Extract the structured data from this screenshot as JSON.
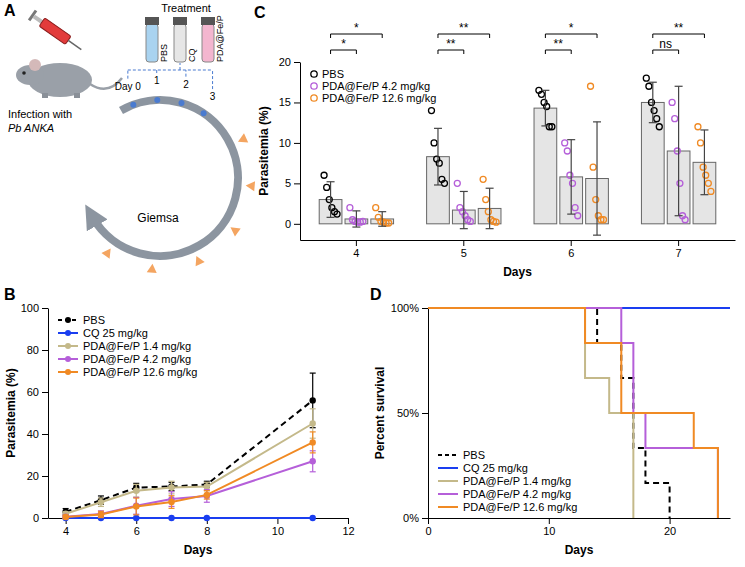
{
  "diagram": {
    "panel": "A",
    "infection": "Infection with",
    "strain": "Pb ANKA",
    "days": [
      "Day 0",
      "1",
      "2",
      "3"
    ],
    "treatment_title": "Treatment",
    "treatments": [
      "PBS",
      "CQ",
      "PDA@Fe/P"
    ],
    "readout": "Giemsa"
  },
  "chart_data": [
    {
      "panel": "B",
      "type": "line",
      "xlabel": "Days",
      "ylabel": "Parasitemia (%)",
      "x": [
        4,
        5,
        6,
        7,
        8,
        11
      ],
      "xlim": [
        3.5,
        12
      ],
      "xticks": [
        4,
        6,
        8,
        10,
        12
      ],
      "ylim": [
        0,
        100
      ],
      "yticks": [
        0,
        20,
        40,
        60,
        80,
        100
      ],
      "legend": "upper left",
      "series": [
        {
          "name": "PBS",
          "color": "#000000",
          "line_style": "dashed",
          "marker": "circle",
          "values": [
            3,
            8.5,
            14.5,
            15,
            16,
            56
          ],
          "errors": [
            1.5,
            2,
            2,
            2,
            1.5,
            13
          ]
        },
        {
          "name": "CQ 25 mg/kg",
          "color": "#1a3ef0",
          "line_style": "solid",
          "marker": "circle",
          "values": [
            0,
            0,
            0,
            0,
            0,
            0
          ]
        },
        {
          "name": "PDA@Fe/P 1.4 mg/kg",
          "color": "#c4b98a",
          "line_style": "solid",
          "marker": "circle",
          "values": [
            2,
            7.5,
            13,
            14.5,
            15,
            45
          ],
          "errors": [
            1,
            2,
            3,
            3,
            2,
            7
          ]
        },
        {
          "name": "PDA@Fe/P 4.2 mg/kg",
          "color": "#b55fd9",
          "line_style": "solid",
          "marker": "circle",
          "values": [
            0.6,
            1.9,
            5.8,
            9,
            10.5,
            27
          ],
          "errors": [
            0.8,
            1.5,
            4,
            3.5,
            3,
            5
          ]
        },
        {
          "name": "PDA@Fe/P 12.6 mg/kg",
          "color": "#f08a24",
          "line_style": "solid",
          "marker": "circle",
          "values": [
            0.5,
            1.7,
            5.5,
            7.6,
            11,
            36
          ],
          "errors": [
            0.8,
            1.5,
            4,
            3,
            2,
            5
          ]
        }
      ]
    },
    {
      "panel": "C",
      "type": "bar",
      "xlabel": "Days",
      "ylabel": "Parasitemia (%)",
      "categories": [
        "4",
        "5",
        "6",
        "7"
      ],
      "ylim": [
        -2,
        20
      ],
      "yticks": [
        0,
        5,
        10,
        15,
        20
      ],
      "legend": "upper left",
      "series": [
        {
          "name": "PBS",
          "color": "#000000",
          "marker": "circle",
          "values": [
            3,
            8.3,
            14.3,
            15
          ],
          "errors": [
            2.2,
            3.5,
            2.2,
            2.5
          ],
          "points": [
            [
              6,
              4.5,
              3,
              2,
              1.5,
              1.2
            ],
            [
              14,
              10,
              8,
              7.5,
              5.5,
              5
            ],
            [
              16.5,
              16,
              15,
              14.5,
              12,
              12
            ],
            [
              18,
              17,
              15,
              14,
              13,
              12
            ]
          ]
        },
        {
          "name": "PDA@Fe/P 4.2 mg/kg",
          "color": "#b55fd9",
          "marker": "circle",
          "values": [
            0.6,
            1.7,
            5.8,
            9
          ],
          "errors": [
            1,
            2.3,
            4.6,
            8
          ],
          "points": [
            [
              2,
              0.5,
              0.3,
              0.2,
              0.2,
              0.3
            ],
            [
              5,
              2,
              1.5,
              1,
              0.5,
              0.3
            ],
            [
              10,
              9,
              6,
              5,
              2,
              1
            ],
            [
              15,
              13,
              9,
              5,
              1,
              0.5
            ]
          ]
        },
        {
          "name": "PDA@Fe/P 12.6 mg/kg",
          "color": "#f08a24",
          "marker": "circle",
          "values": [
            0.6,
            1.9,
            5.6,
            7.6
          ],
          "errors": [
            0.9,
            2.5,
            7,
            4
          ],
          "points": [
            [
              2,
              0.8,
              0.3,
              0.2,
              0.1,
              0.1
            ],
            [
              5.5,
              3,
              1.5,
              0.5,
              0.3,
              0.2
            ],
            [
              17,
              7,
              3,
              1,
              0.5,
              0.5
            ],
            [
              12,
              10,
              7,
              6,
              5,
              4
            ]
          ]
        }
      ],
      "annotations": [
        {
          "x": "4",
          "between": [
            "PBS",
            "PDA@Fe/P 4.2 mg/kg"
          ],
          "text": "*"
        },
        {
          "x": "4",
          "between": [
            "PBS",
            "PDA@Fe/P 12.6 mg/kg"
          ],
          "text": "*"
        },
        {
          "x": "5",
          "between": [
            "PBS",
            "PDA@Fe/P 4.2 mg/kg"
          ],
          "text": "**"
        },
        {
          "x": "5",
          "between": [
            "PBS",
            "PDA@Fe/P 12.6 mg/kg"
          ],
          "text": "**"
        },
        {
          "x": "6",
          "between": [
            "PBS",
            "PDA@Fe/P 4.2 mg/kg"
          ],
          "text": "**"
        },
        {
          "x": "6",
          "between": [
            "PBS",
            "PDA@Fe/P 12.6 mg/kg"
          ],
          "text": "*"
        },
        {
          "x": "7",
          "between": [
            "PBS",
            "PDA@Fe/P 4.2 mg/kg"
          ],
          "text": "ns"
        },
        {
          "x": "7",
          "between": [
            "PBS",
            "PDA@Fe/P 12.6 mg/kg"
          ],
          "text": "**"
        }
      ]
    },
    {
      "panel": "D",
      "type": "step",
      "xlabel": "Days",
      "ylabel": "Percent survival",
      "xlim": [
        0,
        25
      ],
      "xticks": [
        0,
        10,
        20
      ],
      "ylim": [
        0,
        100
      ],
      "yticks": [
        {
          "value": 0,
          "label": "0%"
        },
        {
          "value": 50,
          "label": "50%"
        },
        {
          "value": 100,
          "label": "100%"
        }
      ],
      "legend": "lower left",
      "series": [
        {
          "name": "PBS",
          "color": "#000000",
          "line_style": "dashed",
          "x": [
            0,
            14,
            16,
            17,
            18,
            20
          ],
          "values": [
            100,
            83.3,
            66.7,
            33.3,
            16.7,
            0
          ]
        },
        {
          "name": "CQ 25 mg/kg",
          "color": "#1a3ef0",
          "line_style": "solid",
          "x": [
            0,
            25
          ],
          "values": [
            100,
            100
          ]
        },
        {
          "name": "PDA@Fe/P 1.4 mg/kg",
          "color": "#c4b98a",
          "line_style": "solid",
          "x": [
            0,
            13,
            15,
            17
          ],
          "values": [
            100,
            66.7,
            50,
            0
          ]
        },
        {
          "name": "PDA@Fe/P 4.2 mg/kg",
          "color": "#b55fd9",
          "line_style": "solid",
          "x": [
            0,
            16,
            17,
            18,
            24
          ],
          "values": [
            100,
            83.3,
            50,
            33.3,
            0
          ]
        },
        {
          "name": "PDA@Fe/P 12.6 mg/kg",
          "color": "#f08a24",
          "line_style": "solid",
          "x": [
            0,
            13,
            16,
            22,
            24
          ],
          "values": [
            100,
            83.3,
            50,
            33.3,
            0
          ]
        }
      ]
    }
  ]
}
